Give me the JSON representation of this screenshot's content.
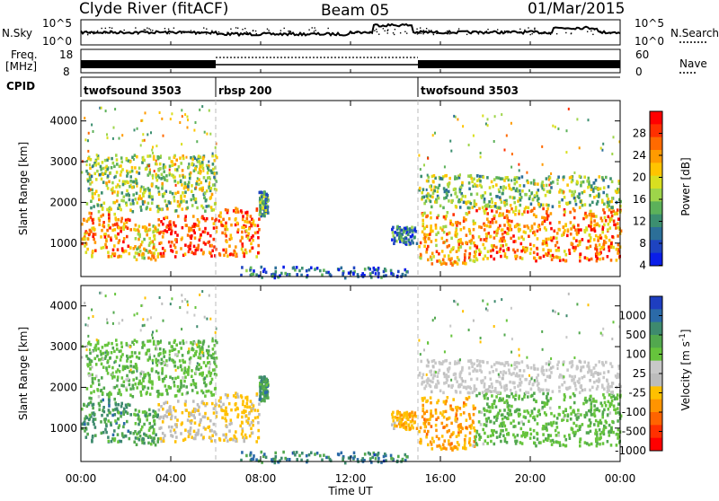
{
  "header": {
    "station": "Clyde River (fitACF)",
    "beam": "Beam 05",
    "date": "01/Mar/2015"
  },
  "top_panels": {
    "nsky_label": "N.Sky",
    "nsky_ticks": [
      "10^5",
      "10^0"
    ],
    "nsearch_label": "N.Search",
    "nsearch_ticks": [
      "10^5",
      "10^0"
    ],
    "freq_label_1": "Freq.",
    "freq_label_2": "[MHz]",
    "freq_ticks": [
      "18",
      "8"
    ],
    "nave_label": "Nave",
    "nave_ticks": [
      "60",
      "0"
    ],
    "cpid_label": "CPID",
    "cpid_segments": [
      {
        "label": "twofsound 3503",
        "start_hour": 0,
        "end_hour": 6
      },
      {
        "label": "rbsp 200",
        "start_hour": 6,
        "end_hour": 15
      },
      {
        "label": "twofsound 3503",
        "start_hour": 15,
        "end_hour": 24
      }
    ]
  },
  "power_colorbar": {
    "label": "Power [dB]",
    "ticks": [
      "28",
      "24",
      "20",
      "16",
      "12",
      "8",
      "4"
    ],
    "colors": [
      "#ff0000",
      "#ff3000",
      "#ff6a00",
      "#ff9a00",
      "#ffc400",
      "#d8df20",
      "#9ed54a",
      "#5cb15a",
      "#3c8f70",
      "#2c6f98",
      "#1e44c0",
      "#0a1ee8"
    ]
  },
  "velocity_colorbar": {
    "label": "Velocity [m s",
    "label_sup": "-1",
    "label_end": "]",
    "ticks": [
      "1000",
      "500",
      "100",
      "25",
      "-25",
      "-100",
      "-500",
      "-1000"
    ],
    "colors": [
      "#1e3ec0",
      "#2b6aa8",
      "#3e8a6e",
      "#52a84e",
      "#66c43c",
      "#c8c8c8",
      "#bcbcbc",
      "#ffc000",
      "#ff9400",
      "#ff6400",
      "#ff3000",
      "#ff0000"
    ]
  },
  "chart_data": {
    "type": "heatmap",
    "x_unit": "hours UT",
    "xlabel": "Time UT",
    "x_tick_labels": [
      "00:00",
      "04:00",
      "08:00",
      "12:00",
      "16:00",
      "20:00",
      "00:00"
    ],
    "x_range": [
      0,
      24
    ],
    "ylabel": "Slant Range [km]",
    "y_tick_labels": [
      "1000",
      "2000",
      "3000",
      "4000"
    ],
    "y_ticks": [
      1000,
      2000,
      3000,
      4000
    ],
    "y_range": [
      180,
      4500
    ],
    "mode_change_hours": [
      6,
      15
    ],
    "power_dB_range": [
      0,
      30
    ],
    "velocity_ms_range": [
      -1000,
      1000
    ],
    "echo_regions": [
      {
        "x": [
          0,
          2.2
        ],
        "y": [
          700,
          1800
        ],
        "power_dB": 22,
        "velocity_ms": 500
      },
      {
        "x": [
          2.3,
          3.4
        ],
        "y": [
          600,
          1500
        ],
        "power_dB": 18,
        "velocity_ms": 400
      },
      {
        "x": [
          3.4,
          6.0
        ],
        "y": [
          700,
          1700
        ],
        "power_dB": 26,
        "velocity_ms": -150
      },
      {
        "x": [
          6.1,
          7.9
        ],
        "y": [
          700,
          1900
        ],
        "power_dB": 24,
        "velocity_ms": -200
      },
      {
        "x": [
          7.9,
          8.3
        ],
        "y": [
          1700,
          2300
        ],
        "power_dB": 10,
        "velocity_ms": 500
      },
      {
        "x": [
          0.2,
          6.0
        ],
        "y": [
          1800,
          3200
        ],
        "power_dB": 14,
        "velocity_ms": 300
      },
      {
        "x": [
          7.0,
          14.5
        ],
        "y": [
          180,
          450
        ],
        "power_dB": 6,
        "velocity_ms": 600
      },
      {
        "x": [
          13.8,
          15.0
        ],
        "y": [
          1000,
          1450
        ],
        "power_dB": 7,
        "velocity_ms": -300
      },
      {
        "x": [
          15.0,
          17.5
        ],
        "y": [
          500,
          1800
        ],
        "power_dB": 20,
        "velocity_ms": -350
      },
      {
        "x": [
          17.5,
          24.0
        ],
        "y": [
          600,
          1900
        ],
        "power_dB": 22,
        "velocity_ms": 300
      },
      {
        "x": [
          15.0,
          24.0
        ],
        "y": [
          1900,
          2700
        ],
        "power_dB": 13,
        "velocity_ms": 60
      }
    ]
  }
}
